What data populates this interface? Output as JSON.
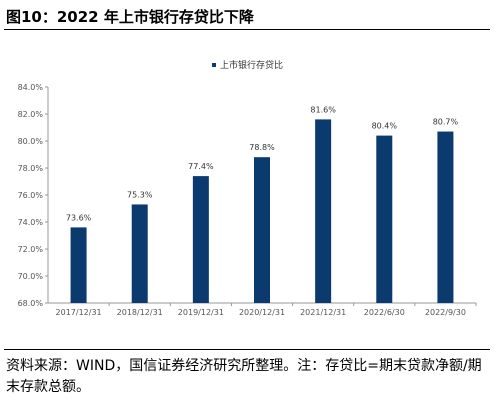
{
  "figure": {
    "title": "图10：2022 年上市银行存贷比下降",
    "source": "资料来源：WIND，国信证券经济研究所整理。注：存贷比=期末贷款净额/期末存款总额。"
  },
  "chart_data": {
    "type": "bar",
    "categories": [
      "2017/12/31",
      "2018/12/31",
      "2019/12/31",
      "2020/12/31",
      "2021/12/31",
      "2022/6/30",
      "2022/9/30"
    ],
    "series": [
      {
        "name": "上市银行存贷比",
        "values": [
          73.6,
          75.3,
          77.4,
          78.8,
          81.6,
          80.4,
          80.7
        ]
      }
    ],
    "data_labels": [
      "73.6%",
      "75.3%",
      "77.4%",
      "78.8%",
      "81.6%",
      "80.4%",
      "80.7%"
    ],
    "y_ticks": [
      68,
      70,
      72,
      74,
      76,
      78,
      80,
      82,
      84
    ],
    "y_tick_labels": [
      "68.0%",
      "70.0%",
      "72.0%",
      "74.0%",
      "76.0%",
      "78.0%",
      "80.0%",
      "82.0%",
      "84.0%"
    ],
    "ylim": [
      68,
      84
    ],
    "grid": false,
    "legend": "top-center",
    "bar_color": "#0b3a6e"
  }
}
